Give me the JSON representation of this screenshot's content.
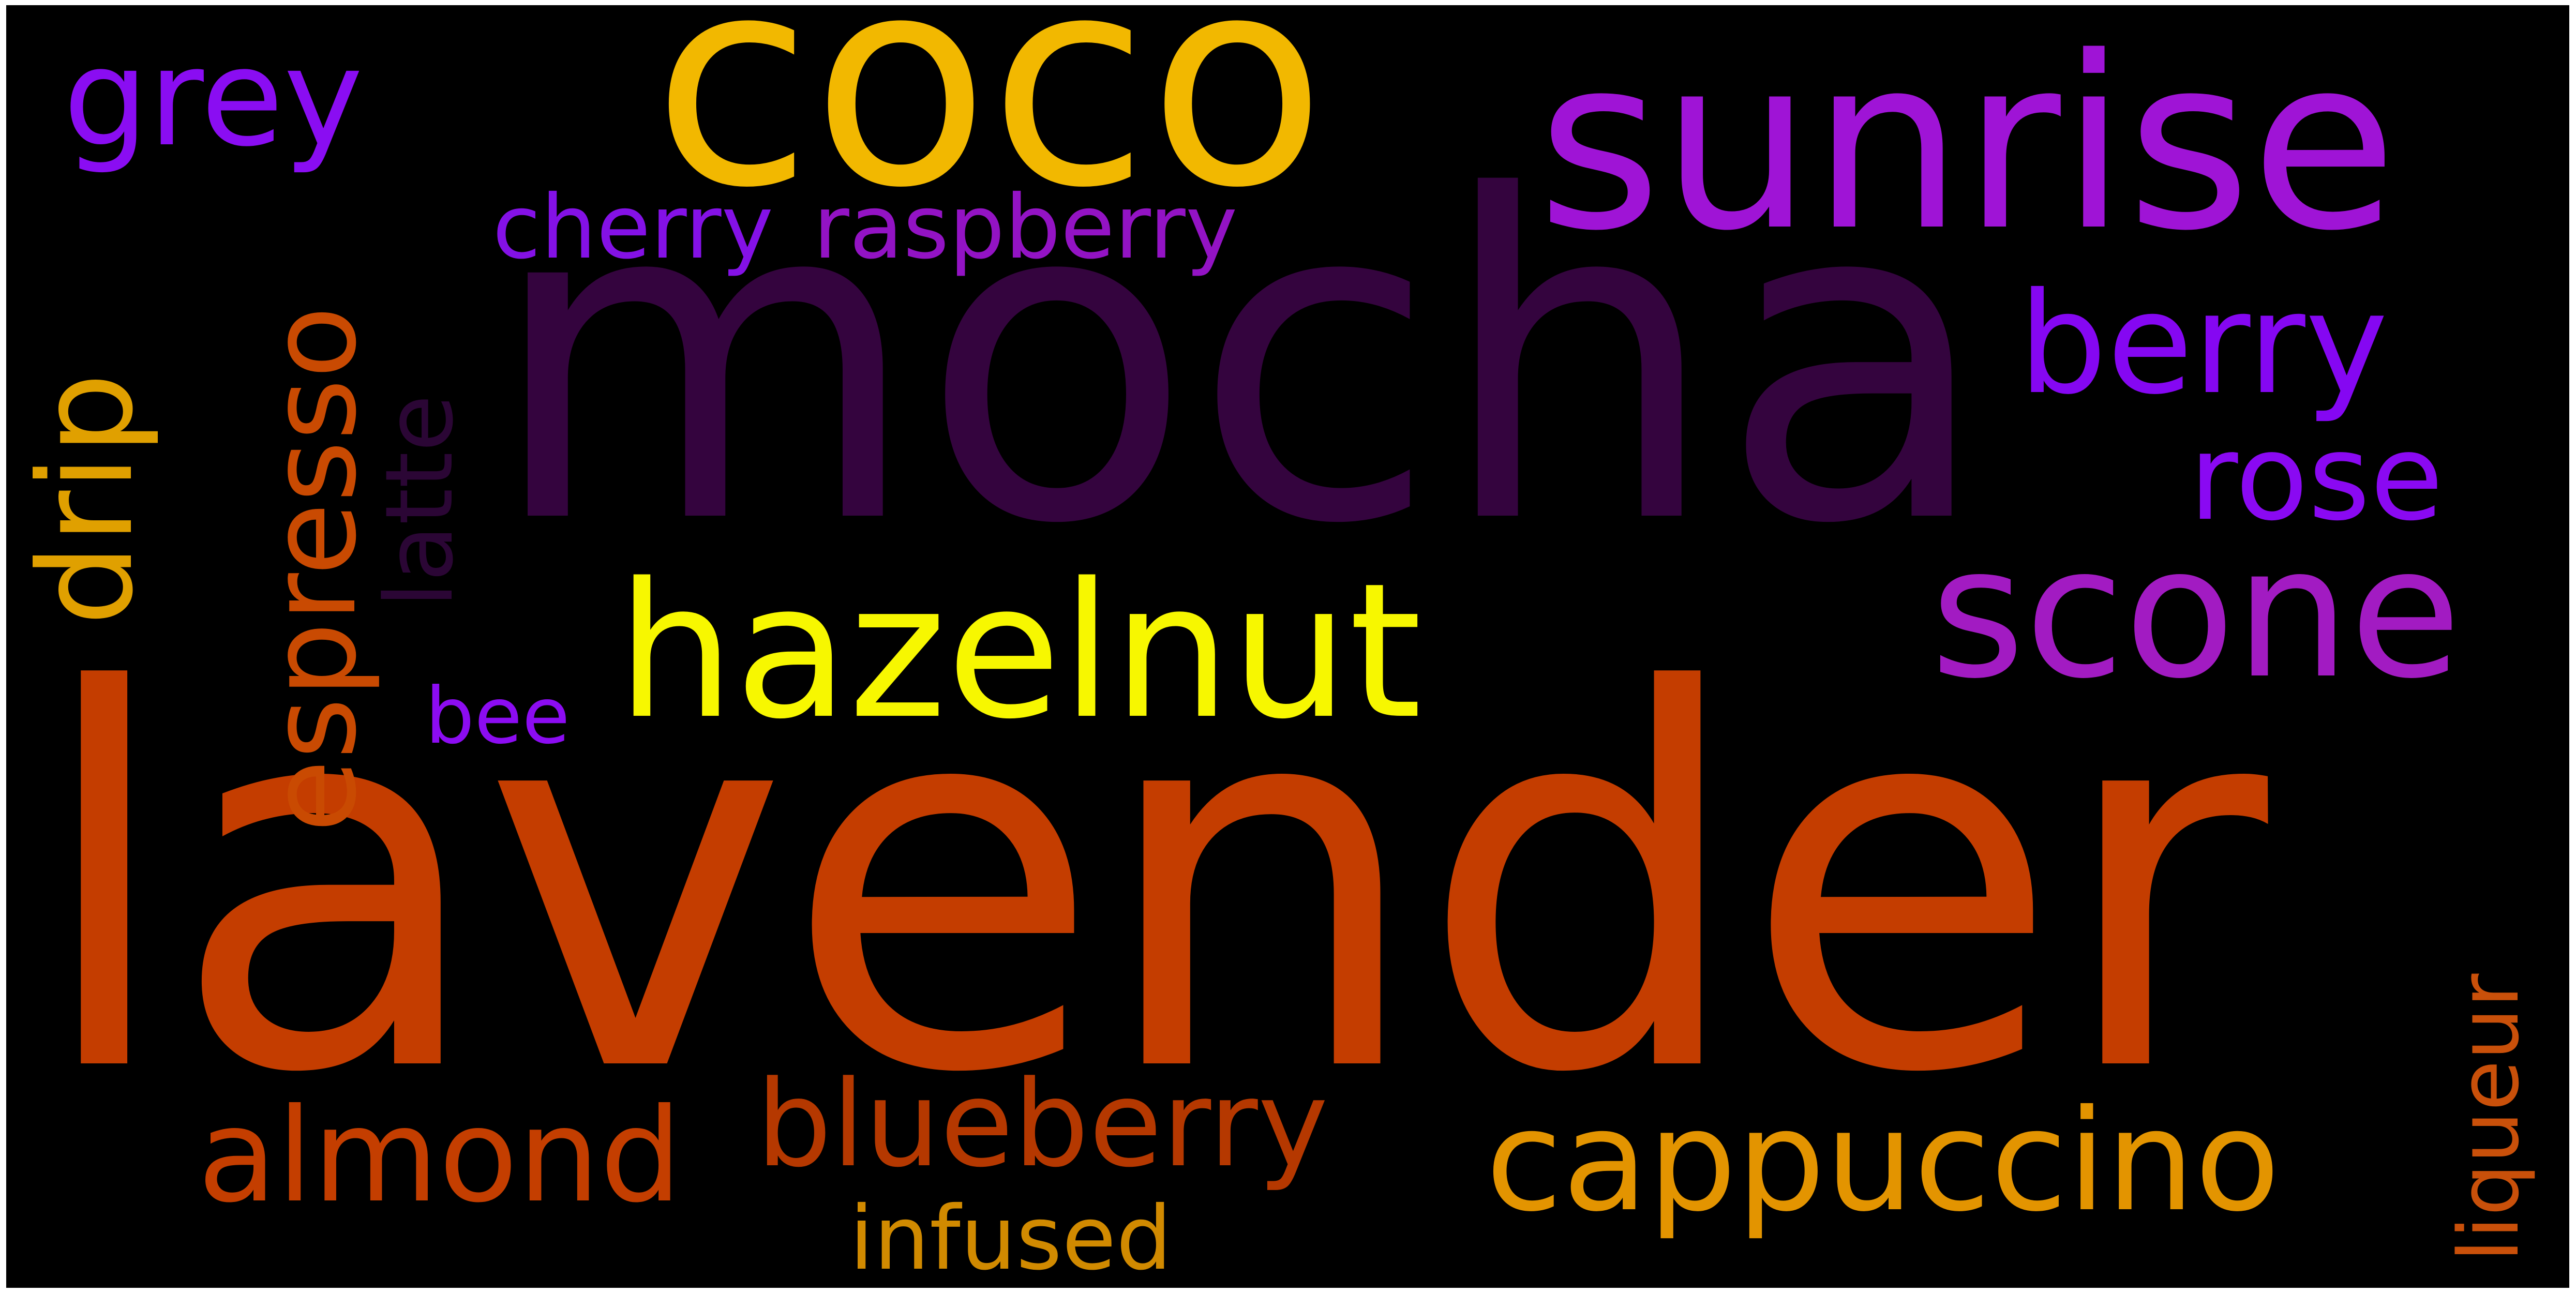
{
  "background_color": "#000000",
  "words": [
    {
      "id": "lavender",
      "text": "lavender",
      "color": "#c43d00"
    },
    {
      "id": "mocha",
      "text": "mocha",
      "color": "#34043e"
    },
    {
      "id": "coco",
      "text": "coco",
      "color": "#f2b800"
    },
    {
      "id": "sunrise",
      "text": "sunrise",
      "color": "#9f14d6"
    },
    {
      "id": "grey",
      "text": "grey",
      "color": "#8a0df2"
    },
    {
      "id": "cherry",
      "text": "cherry",
      "color": "#8411e6"
    },
    {
      "id": "raspberry",
      "text": "raspberry",
      "color": "#9313c4"
    },
    {
      "id": "berry",
      "text": "berry",
      "color": "#8507f2"
    },
    {
      "id": "rose",
      "text": "rose",
      "color": "#8a09f2"
    },
    {
      "id": "scone",
      "text": "scone",
      "color": "#a21bc2"
    },
    {
      "id": "hazelnut",
      "text": "hazelnut",
      "color": "#f7f700"
    },
    {
      "id": "espresso",
      "text": "espresso",
      "color": "#c94a02"
    },
    {
      "id": "latte",
      "text": "latte",
      "color": "#2b0635"
    },
    {
      "id": "drip",
      "text": "drip",
      "color": "#e0a000"
    },
    {
      "id": "bee",
      "text": "bee",
      "color": "#8c0cf2"
    },
    {
      "id": "almond",
      "text": "almond",
      "color": "#c43e00"
    },
    {
      "id": "blueberry",
      "text": "blueberry",
      "color": "#b53800"
    },
    {
      "id": "cappuccino",
      "text": "cappuccino",
      "color": "#e39400"
    },
    {
      "id": "infused",
      "text": "infused",
      "color": "#d18a00"
    },
    {
      "id": "liqueur",
      "text": "liqueur",
      "color": "#c9500a"
    }
  ]
}
